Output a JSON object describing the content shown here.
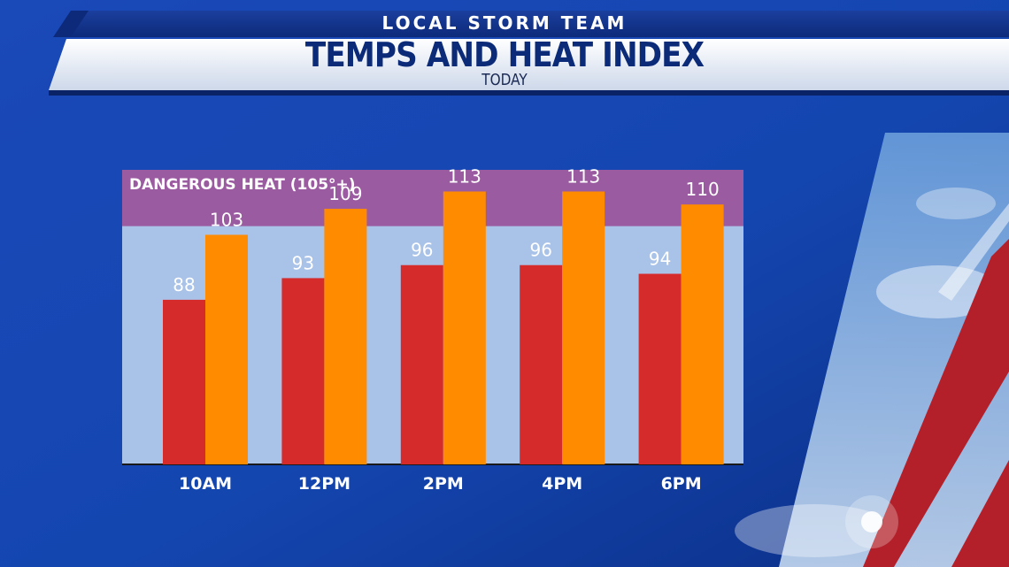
{
  "header": {
    "kicker": "LOCAL STORM TEAM",
    "title": "TEMPS AND HEAT INDEX",
    "subtitle": "TODAY"
  },
  "colors": {
    "temperature": "#d62b2b",
    "heat_index": "#ff8c00",
    "danger_zone": "#9b5ba0",
    "plot_background": "#a9c2e8"
  },
  "chart_data": {
    "type": "bar",
    "title": "TEMPS AND HEAT INDEX",
    "subtitle": "TODAY",
    "categories": [
      "10AM",
      "12PM",
      "2PM",
      "4PM",
      "6PM"
    ],
    "series": [
      {
        "values": [
          88,
          93,
          96,
          96,
          94
        ]
      },
      {
        "values": [
          103,
          109,
          113,
          113,
          110
        ]
      }
    ],
    "ylim": [
      50,
      118
    ],
    "legend": "none",
    "grid": false,
    "annotations": [
      {
        "label": "DANGEROUS HEAT (105°+)",
        "y_from": 105,
        "y_to": 118
      }
    ]
  }
}
